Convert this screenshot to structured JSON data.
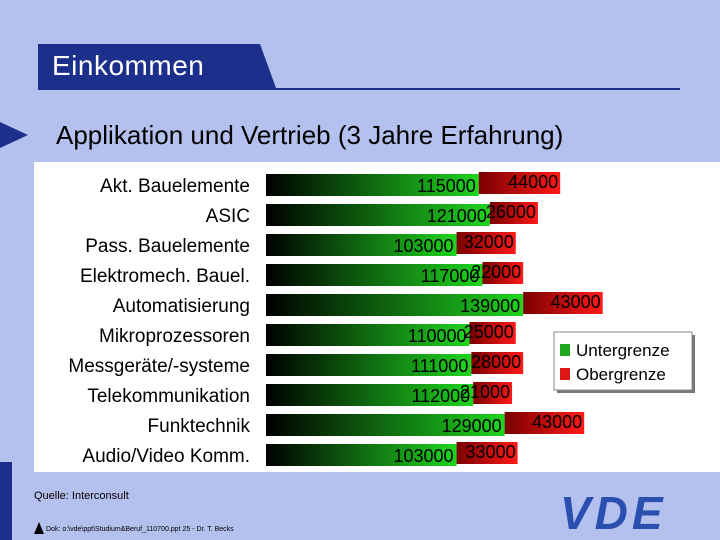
{
  "slide": {
    "title": "Einkommen",
    "subtitle": "Applikation und Vertrieb (3 Jahre Erfahrung)",
    "source": "Quelle: Interconsult",
    "footer": "Dok: o:\\vde\\ppt\\Studium&Beruf_110700.ppt 25 - Dr. T. Becks",
    "logo": "VDE"
  },
  "colors": {
    "background": "#b4c0ee",
    "title_bar": "#1c2f8a",
    "lower_series": "#1fa81f",
    "upper_series": "#e01515"
  },
  "chart_data": {
    "type": "bar",
    "orientation": "horizontal",
    "stacked": true,
    "categories": [
      "Akt. Bauelemente",
      "ASIC",
      "Pass. Bauelemente",
      "Elektromech. Bauel.",
      "Automatisierung",
      "Mikroprozessoren",
      "Messgeräte/-systeme",
      "Telekommunikation",
      "Funktechnik",
      "Audio/Video Komm."
    ],
    "series": [
      {
        "name": "Untergrenze",
        "values": [
          115000,
          121000,
          103000,
          117000,
          139000,
          110000,
          111000,
          112000,
          129000,
          103000
        ]
      },
      {
        "name": "Obergrenze",
        "values": [
          44000,
          26000,
          32000,
          22000,
          43000,
          25000,
          28000,
          21000,
          43000,
          33000
        ]
      }
    ],
    "legend_position": "right"
  }
}
